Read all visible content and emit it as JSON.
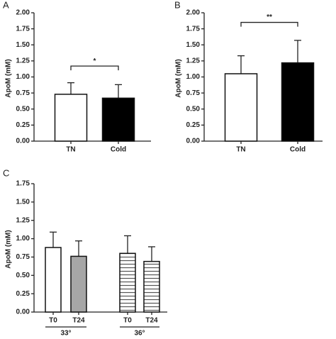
{
  "chart_data": [
    {
      "type": "bar",
      "label": "A",
      "ylabel": "ApoM (mM)",
      "categories": [
        "TN",
        "Cold"
      ],
      "values": [
        0.73,
        0.67
      ],
      "errors": [
        0.18,
        0.21
      ],
      "colors": [
        "#ffffff",
        "#000000"
      ],
      "patterns": [
        "solid",
        "solid"
      ],
      "ylim": [
        0,
        2
      ],
      "yticks": [
        {
          "value": 0,
          "label": "0.00"
        },
        {
          "value": 0.25,
          "label": "0.25"
        },
        {
          "value": 0.5,
          "label": "0.50"
        },
        {
          "value": 0.75,
          "label": "0.75"
        },
        {
          "value": 1,
          "label": "1.00"
        },
        {
          "value": 1.25,
          "label": "1.25"
        },
        {
          "value": 1.5,
          "label": "1.50"
        },
        {
          "value": 1.75,
          "label": "1.75"
        },
        {
          "value": 2,
          "label": "2.00"
        }
      ],
      "significance": {
        "text": "*",
        "y": 1.17
      }
    },
    {
      "type": "bar",
      "label": "B",
      "ylabel": "ApoM (mM)",
      "categories": [
        "TN",
        "Cold"
      ],
      "values": [
        1.05,
        1.22
      ],
      "errors": [
        0.28,
        0.35
      ],
      "colors": [
        "#ffffff",
        "#000000"
      ],
      "patterns": [
        "solid",
        "solid"
      ],
      "ylim": [
        0,
        2
      ],
      "yticks": [
        {
          "value": 0,
          "label": "0.00"
        },
        {
          "value": 0.25,
          "label": "0.25"
        },
        {
          "value": 0.5,
          "label": "0.50"
        },
        {
          "value": 0.75,
          "label": "0.75"
        },
        {
          "value": 1,
          "label": "1.00"
        },
        {
          "value": 1.25,
          "label": "1.25"
        },
        {
          "value": 1.5,
          "label": "1.50"
        },
        {
          "value": 1.75,
          "label": "1.75"
        },
        {
          "value": 2,
          "label": "2.00"
        }
      ],
      "significance": {
        "text": "**",
        "y": 1.85
      }
    },
    {
      "type": "bar",
      "label": "C",
      "ylabel": "ApoM (mM)",
      "categories": [
        "T0",
        "T24",
        "T0",
        "T24"
      ],
      "groups": [
        "33°",
        "36°"
      ],
      "values": [
        0.88,
        0.76,
        0.8,
        0.69
      ],
      "errors": [
        0.21,
        0.21,
        0.24,
        0.2
      ],
      "colors": [
        "#ffffff",
        "#a6a6a6",
        "#ffffff",
        "#a6a6a6"
      ],
      "patterns": [
        "solid",
        "solid",
        "horizontal-stripes",
        "horizontal-stripes"
      ],
      "ylim": [
        0,
        1.75
      ],
      "yticks": [
        {
          "value": 0,
          "label": "0.00"
        },
        {
          "value": 0.25,
          "label": "0.25"
        },
        {
          "value": 0.5,
          "label": "0.50"
        },
        {
          "value": 0.75,
          "label": "0.75"
        },
        {
          "value": 1,
          "label": "1.00"
        },
        {
          "value": 1.25,
          "label": "1.25"
        },
        {
          "value": 1.5,
          "label": "1.50"
        },
        {
          "value": 1.75,
          "label": "1.75"
        }
      ]
    }
  ]
}
